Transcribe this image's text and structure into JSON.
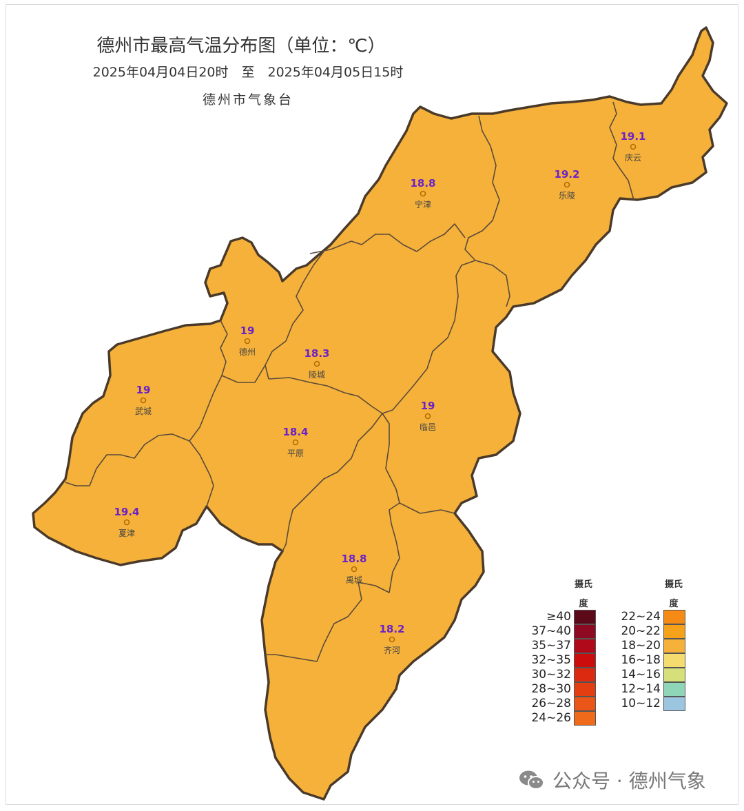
{
  "header": {
    "title": "德州市最高气温分布图（单位：℃）",
    "period": "2025年04月04日20时　至　2025年04月05日15时",
    "issuer": "德州市气象台"
  },
  "colors": {
    "fill": "#f5b13a",
    "border": "#5a4a3a",
    "value_text": "#6a22c8",
    "station_dot": "#b56b00"
  },
  "stations": [
    {
      "name": "庆云",
      "value": "19.1"
    },
    {
      "name": "乐陵",
      "value": "19.2"
    },
    {
      "name": "宁津",
      "value": "18.8"
    },
    {
      "name": "德州",
      "value": "19"
    },
    {
      "name": "陵城",
      "value": "18.3"
    },
    {
      "name": "武城",
      "value": "19"
    },
    {
      "name": "临邑",
      "value": "19"
    },
    {
      "name": "平原",
      "value": "18.4"
    },
    {
      "name": "夏津",
      "value": "19.4"
    },
    {
      "name": "禹城",
      "value": "18.8"
    },
    {
      "name": "齐河",
      "value": "18.2"
    }
  ],
  "legend": {
    "unit_line1": "摄氏",
    "unit_line2": "度",
    "left": [
      {
        "label": "≥40",
        "color": "#5c0a1a"
      },
      {
        "label": "37~40",
        "color": "#8e0a22"
      },
      {
        "label": "35~37",
        "color": "#b00a1a"
      },
      {
        "label": "32~35",
        "color": "#cc0d0d"
      },
      {
        "label": "30~32",
        "color": "#dc2a10"
      },
      {
        "label": "28~30",
        "color": "#e23e12"
      },
      {
        "label": "26~28",
        "color": "#ea5618"
      },
      {
        "label": "24~26",
        "color": "#f06a1c"
      }
    ],
    "right": [
      {
        "label": "22~24",
        "color": "#f58a14"
      },
      {
        "label": "20~22",
        "color": "#f5a11a"
      },
      {
        "label": "18~20",
        "color": "#f5b13a"
      },
      {
        "label": "16~18",
        "color": "#f5dc6e"
      },
      {
        "label": "14~16",
        "color": "#d6e07a"
      },
      {
        "label": "12~14",
        "color": "#8fd6b8"
      },
      {
        "label": "10~12",
        "color": "#9cc6e0"
      }
    ]
  },
  "watermark": {
    "text": "公众号 · 德州气象",
    "icon": "wechat-icon"
  }
}
